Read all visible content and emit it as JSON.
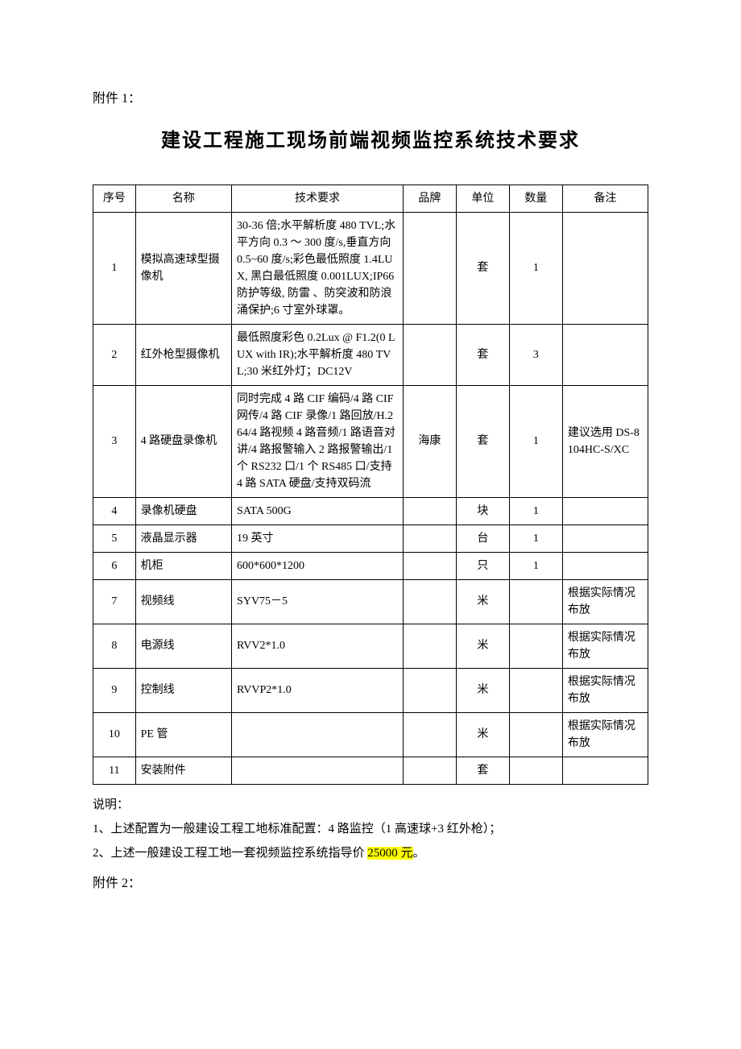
{
  "attachment1_label": "附件 1：",
  "title": "建设工程施工现场前端视频监控系统技术要求",
  "columns": [
    "序号",
    "名称",
    "技术要求",
    "品牌",
    "单位",
    "数量",
    "备注"
  ],
  "rows": [
    {
      "idx": "1",
      "name": "模拟高速球型摄像机",
      "spec": "30-36 倍;水平解析度 480 TVL;水平方向 0.3 ～ 300 度/s,垂直方向 0.5~60 度/s;彩色最低照度 1.4LUX, 黑白最低照度 0.001LUX;IP66 防护等级, 防雷 、防突波和防浪涌保护;6 寸室外球罩。",
      "brand": "",
      "unit": "套",
      "qty": "1",
      "note": ""
    },
    {
      "idx": "2",
      "name": "红外枪型摄像机",
      "spec": "最低照度彩色 0.2Lux @ F1.2(0 LUX with IR);水平解析度 480 TVL;30 米红外灯；DC12V",
      "brand": "",
      "unit": "套",
      "qty": "3",
      "note": ""
    },
    {
      "idx": "3",
      "name": "4 路硬盘录像机",
      "spec": "同时完成 4 路 CIF 编码/4 路 CIF 网传/4 路 CIF 录像/1 路回放/H.264/4 路视频 4 路音频/1 路语音对讲/4 路报警输入 2 路报警输出/1 个 RS232 口/1 个 RS485 口/支持 4 路 SATA 硬盘/支持双码流",
      "brand": "海康",
      "unit": "套",
      "qty": "1",
      "note": "建议选用 DS-8104HC-S/XC"
    },
    {
      "idx": "4",
      "name": "录像机硬盘",
      "spec": "SATA 500G",
      "brand": "",
      "unit": "块",
      "qty": "1",
      "note": ""
    },
    {
      "idx": "5",
      "name": "液晶显示器",
      "spec": "19 英寸",
      "brand": "",
      "unit": "台",
      "qty": "1",
      "note": ""
    },
    {
      "idx": "6",
      "name": "机柜",
      "spec": "600*600*1200",
      "brand": "",
      "unit": "只",
      "qty": "1",
      "note": ""
    },
    {
      "idx": "7",
      "name": "视频线",
      "spec": "SYV75－5",
      "brand": "",
      "unit": "米",
      "qty": "",
      "note": "根据实际情况布放"
    },
    {
      "idx": "8",
      "name": "电源线",
      "spec": "RVV2*1.0",
      "brand": "",
      "unit": "米",
      "qty": "",
      "note": "根据实际情况布放"
    },
    {
      "idx": "9",
      "name": "控制线",
      "spec": "RVVP2*1.0",
      "brand": "",
      "unit": "米",
      "qty": "",
      "note": "根据实际情况布放"
    },
    {
      "idx": "10",
      "name": "PE 管",
      "spec": "",
      "brand": "",
      "unit": "米",
      "qty": "",
      "note": "根据实际情况布放"
    },
    {
      "idx": "11",
      "name": "安装附件",
      "spec": "",
      "brand": "",
      "unit": "套",
      "qty": "",
      "note": ""
    }
  ],
  "notes_label": "说明：",
  "note1": "1、上述配置为一般建设工程工地标准配置：4 路监控（1 高速球+3 红外枪）；",
  "note2_pre": "2、上述一般建设工程工地一套视频监控系统指导价 ",
  "note2_highlight": "25000 元",
  "note2_post": "。",
  "attachment2_label": "附件 2："
}
